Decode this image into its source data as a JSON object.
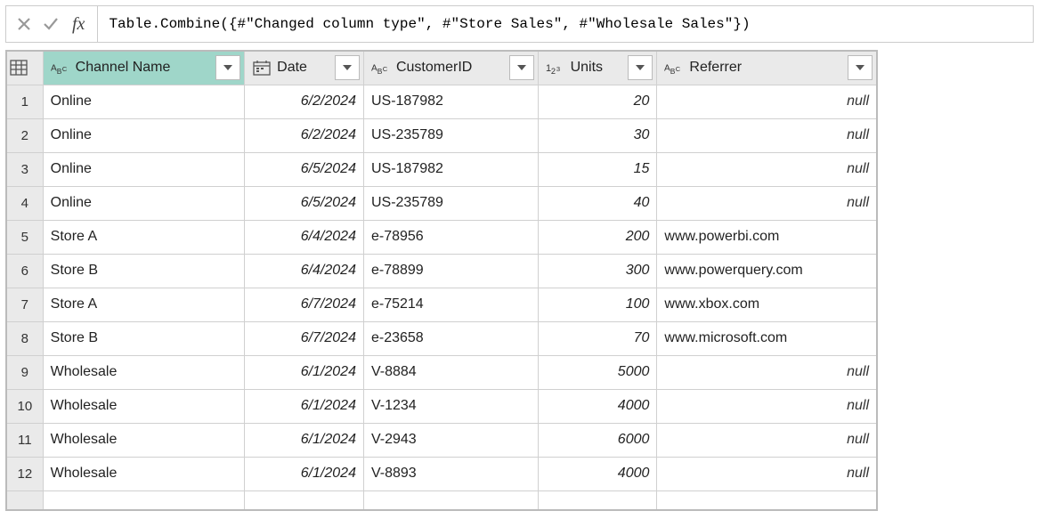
{
  "formula": {
    "fx_label": "fx",
    "text": "Table.Combine({#\"Changed column type\", #\"Store Sales\", #\"Wholesale Sales\"})"
  },
  "columns": [
    {
      "name": "Channel Name",
      "type": "text",
      "selected": true
    },
    {
      "name": "Date",
      "type": "date",
      "selected": false
    },
    {
      "name": "CustomerID",
      "type": "text",
      "selected": false
    },
    {
      "name": "Units",
      "type": "number",
      "selected": false
    },
    {
      "name": "Referrer",
      "type": "text",
      "selected": false
    }
  ],
  "rows": [
    {
      "n": "1",
      "channel": "Online",
      "date": "6/2/2024",
      "cust": "US-187982",
      "units": "20",
      "ref": null
    },
    {
      "n": "2",
      "channel": "Online",
      "date": "6/2/2024",
      "cust": "US-235789",
      "units": "30",
      "ref": null
    },
    {
      "n": "3",
      "channel": "Online",
      "date": "6/5/2024",
      "cust": "US-187982",
      "units": "15",
      "ref": null
    },
    {
      "n": "4",
      "channel": "Online",
      "date": "6/5/2024",
      "cust": "US-235789",
      "units": "40",
      "ref": null
    },
    {
      "n": "5",
      "channel": "Store A",
      "date": "6/4/2024",
      "cust": "e-78956",
      "units": "200",
      "ref": "www.powerbi.com"
    },
    {
      "n": "6",
      "channel": "Store B",
      "date": "6/4/2024",
      "cust": "e-78899",
      "units": "300",
      "ref": "www.powerquery.com"
    },
    {
      "n": "7",
      "channel": "Store A",
      "date": "6/7/2024",
      "cust": "e-75214",
      "units": "100",
      "ref": "www.xbox.com"
    },
    {
      "n": "8",
      "channel": "Store B",
      "date": "6/7/2024",
      "cust": "e-23658",
      "units": "70",
      "ref": "www.microsoft.com"
    },
    {
      "n": "9",
      "channel": "Wholesale",
      "date": "6/1/2024",
      "cust": "V-8884",
      "units": "5000",
      "ref": null
    },
    {
      "n": "10",
      "channel": "Wholesale",
      "date": "6/1/2024",
      "cust": "V-1234",
      "units": "4000",
      "ref": null
    },
    {
      "n": "11",
      "channel": "Wholesale",
      "date": "6/1/2024",
      "cust": "V-2943",
      "units": "6000",
      "ref": null
    },
    {
      "n": "12",
      "channel": "Wholesale",
      "date": "6/1/2024",
      "cust": "V-8893",
      "units": "4000",
      "ref": null
    }
  ],
  "null_text": "null",
  "colors": {
    "selected_header_bg": "#9fd6c9",
    "header_bg": "#eaeaea",
    "border": "#d0d0d0",
    "outer_border": "#bbbbbb"
  }
}
